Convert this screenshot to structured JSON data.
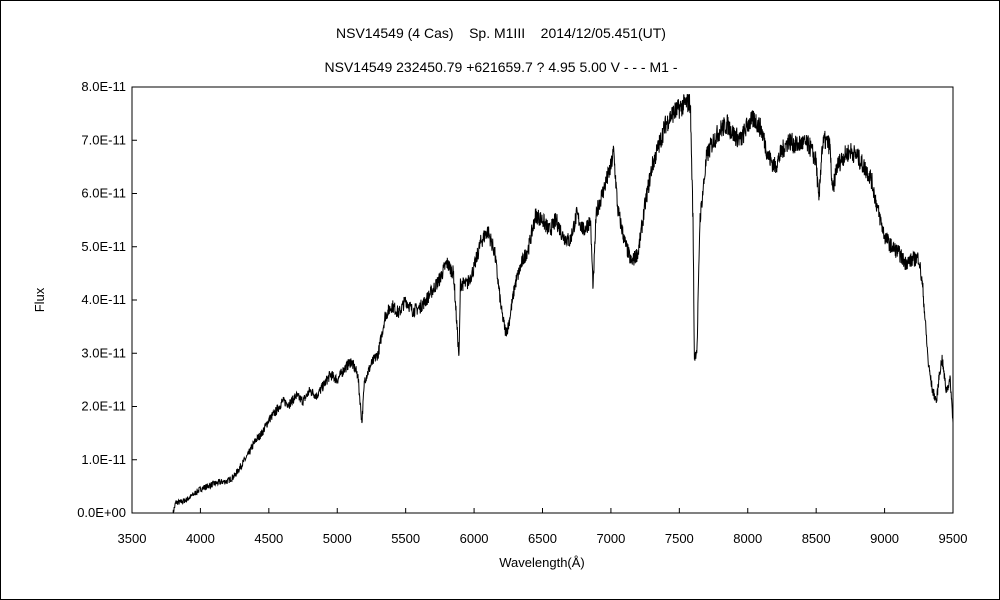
{
  "chart_data": {
    "type": "line",
    "title": "NSV14549 (4 Cas)    Sp. M1III    2014/12/05.451(UT)",
    "subtitle": "NSV14549 232450.79 +621659.7 ? 4.95 5.00 V - - - M1 -",
    "xlabel": "Wavelength(Å)",
    "ylabel": "Flux",
    "xlim": [
      3500,
      9500
    ],
    "ylim": [
      0,
      8e-11
    ],
    "x_ticks": [
      "3500",
      "4000",
      "4500",
      "5000",
      "5500",
      "6000",
      "6500",
      "7000",
      "7500",
      "8000",
      "8500",
      "9000",
      "9500"
    ],
    "y_ticks": [
      "0.0E+00",
      "1.0E-11",
      "2.0E-11",
      "3.0E-11",
      "4.0E-11",
      "5.0E-11",
      "6.0E-11",
      "7.0E-11",
      "8.0E-11"
    ],
    "grid": false,
    "legend": "none",
    "line_color": "#000000",
    "series": [
      {
        "x": [
          3800,
          3820,
          3850,
          3900,
          3950,
          4000,
          4050,
          4100,
          4150,
          4200,
          4250,
          4300,
          4350,
          4400,
          4450,
          4500,
          4550,
          4600,
          4650,
          4700,
          4750,
          4800,
          4850,
          4900,
          4950,
          5000,
          5050,
          5100,
          5150,
          5170,
          5180,
          5200,
          5250,
          5300,
          5350,
          5400,
          5450,
          5500,
          5550,
          5600,
          5650,
          5700,
          5750,
          5800,
          5850,
          5875,
          5890,
          5900,
          5950,
          6000,
          6050,
          6100,
          6150,
          6200,
          6230,
          6250,
          6300,
          6350,
          6400,
          6450,
          6500,
          6550,
          6600,
          6650,
          6700,
          6750,
          6800,
          6850,
          6870,
          6890,
          6900,
          6950,
          7000,
          7020,
          7050,
          7100,
          7150,
          7200,
          7250,
          7300,
          7350,
          7400,
          7450,
          7500,
          7550,
          7580,
          7600,
          7610,
          7630,
          7650,
          7700,
          7750,
          7800,
          7850,
          7900,
          7950,
          8000,
          8050,
          8100,
          8150,
          8200,
          8250,
          8300,
          8350,
          8400,
          8450,
          8500,
          8520,
          8540,
          8560,
          8600,
          8620,
          8650,
          8700,
          8750,
          8800,
          8850,
          8900,
          8950,
          9000,
          9050,
          9100,
          9150,
          9200,
          9250,
          9280,
          9300,
          9320,
          9350,
          9380,
          9400,
          9420,
          9450,
          9480,
          9500
        ],
        "values": [
          0.0,
          2e-12,
          2e-12,
          2.5e-12,
          3.5e-12,
          4.5e-12,
          5e-12,
          5.5e-12,
          5.8e-12,
          6e-12,
          7e-12,
          9e-12,
          1.1e-11,
          1.35e-11,
          1.5e-11,
          1.75e-11,
          1.9e-11,
          2.1e-11,
          2.05e-11,
          2.2e-11,
          2.1e-11,
          2.3e-11,
          2.2e-11,
          2.4e-11,
          2.6e-11,
          2.5e-11,
          2.7e-11,
          2.85e-11,
          2.6e-11,
          2e-11,
          1.7e-11,
          2.5e-11,
          2.8e-11,
          3e-11,
          3.7e-11,
          3.9e-11,
          3.75e-11,
          4e-11,
          3.8e-11,
          3.85e-11,
          4e-11,
          4.2e-11,
          4.4e-11,
          4.7e-11,
          4.5e-11,
          3.5e-11,
          2.9e-11,
          4.3e-11,
          4.3e-11,
          4.6e-11,
          5.1e-11,
          5.3e-11,
          4.9e-11,
          3.8e-11,
          3.4e-11,
          3.5e-11,
          4.3e-11,
          4.7e-11,
          5e-11,
          5.6e-11,
          5.5e-11,
          5.3e-11,
          5.5e-11,
          5.2e-11,
          5.1e-11,
          5.6e-11,
          5.3e-11,
          5.5e-11,
          4.2e-11,
          5.5e-11,
          5.7e-11,
          6.1e-11,
          6.5e-11,
          6.8e-11,
          5.7e-11,
          5.1e-11,
          4.7e-11,
          4.9e-11,
          5.8e-11,
          6.5e-11,
          6.9e-11,
          7.3e-11,
          7.5e-11,
          7.6e-11,
          7.7e-11,
          7.7e-11,
          5.5e-11,
          2.9e-11,
          3.1e-11,
          5.5e-11,
          6.7e-11,
          7e-11,
          7.2e-11,
          7.3e-11,
          7.1e-11,
          7e-11,
          7.3e-11,
          7.4e-11,
          7.2e-11,
          6.7e-11,
          6.5e-11,
          6.8e-11,
          7e-11,
          6.9e-11,
          6.95e-11,
          6.9e-11,
          6.6e-11,
          5.8e-11,
          6.8e-11,
          7e-11,
          6.9e-11,
          6e-11,
          6.5e-11,
          6.7e-11,
          6.8e-11,
          6.7e-11,
          6.5e-11,
          6.3e-11,
          5.7e-11,
          5.2e-11,
          5e-11,
          4.9e-11,
          4.7e-11,
          4.75e-11,
          4.8e-11,
          4.2e-11,
          3.5e-11,
          2.8e-11,
          2.3e-11,
          2.1e-11,
          2.6e-11,
          2.9e-11,
          2.3e-11,
          2.5e-11,
          1.7e-11
        ]
      }
    ]
  }
}
